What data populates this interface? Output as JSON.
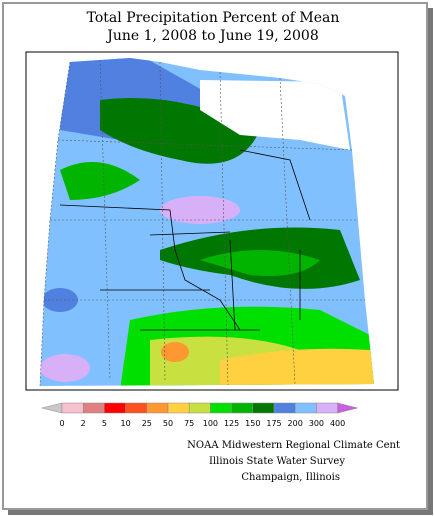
{
  "header": {
    "title": "Total Precipitation Percent of Mean",
    "subtitle": "June 1, 2008 to June 19, 2008"
  },
  "legend": {
    "ticks": [
      0,
      2,
      5,
      10,
      25,
      50,
      75,
      100,
      125,
      150,
      175,
      200,
      300,
      400
    ],
    "colors": [
      "#f8c0d0",
      "#e08080",
      "#ff0000",
      "#ff5020",
      "#ff9830",
      "#ffd040",
      "#c8e040",
      "#00e000",
      "#00b400",
      "#007800",
      "#5080e0",
      "#80c0ff",
      "#d8b0f8"
    ],
    "under_color": "#c8c8c8",
    "over_color": "#c860e0"
  },
  "credits": [
    "NOAA Midwestern Regional Climate Cent",
    "Illinois State Water Survey",
    "Champaign, Illinois"
  ]
}
